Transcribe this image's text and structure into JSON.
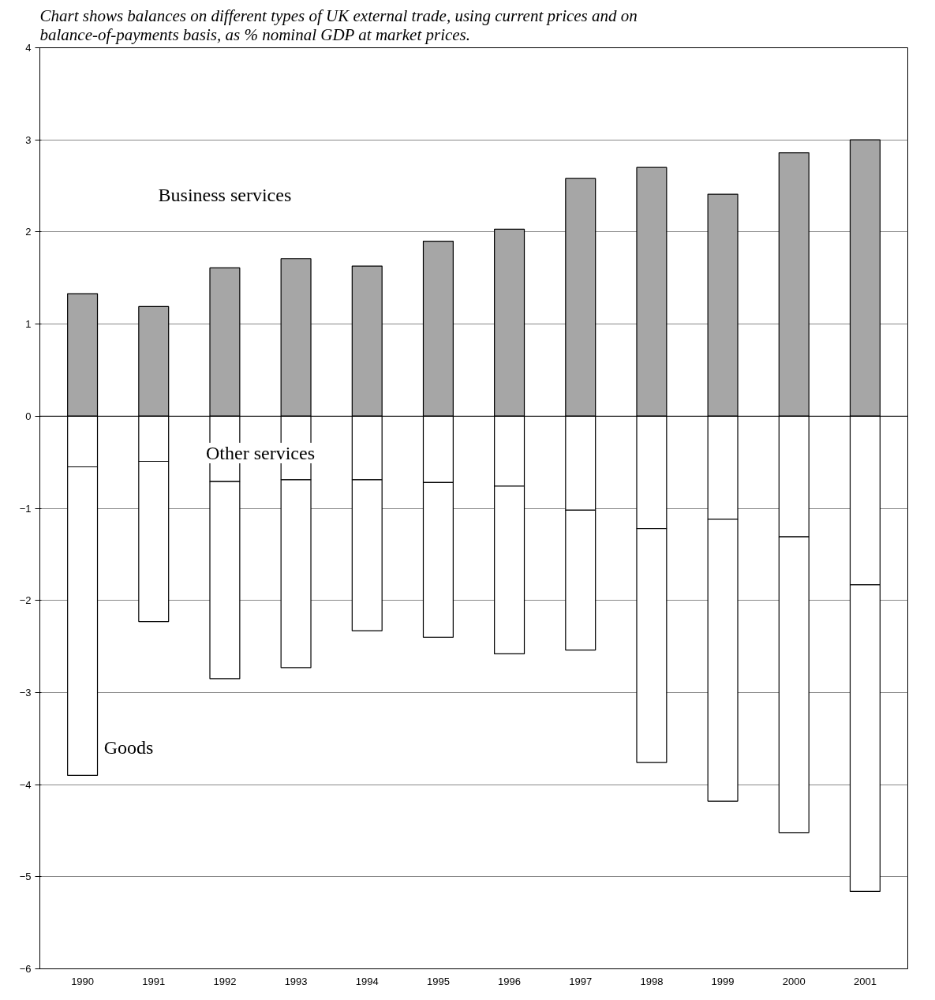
{
  "chart_data": {
    "type": "bar",
    "stacked": true,
    "title": "Chart shows balances on different types of UK external trade, using current prices and on balance-of-payments basis, as % nominal GDP at market prices.",
    "categories": [
      "1990",
      "1991",
      "1992",
      "1993",
      "1994",
      "1995",
      "1996",
      "1997",
      "1998",
      "1999",
      "2000",
      "2001"
    ],
    "series": [
      {
        "name": "Business services",
        "color": "#a6a6a6",
        "values": [
          1.33,
          1.19,
          1.61,
          1.71,
          1.63,
          1.9,
          2.03,
          2.58,
          2.7,
          2.41,
          2.86,
          3.0
        ]
      },
      {
        "name": "Other services",
        "color": "#ffffff",
        "values": [
          -0.55,
          -0.49,
          -0.71,
          -0.69,
          -0.69,
          -0.72,
          -0.76,
          -1.02,
          -1.22,
          -1.12,
          -1.31,
          -1.83
        ]
      },
      {
        "name": "Goods",
        "color": "#ffffff",
        "values": [
          -3.35,
          -1.74,
          -2.14,
          -2.04,
          -1.64,
          -1.68,
          -1.82,
          -1.52,
          -2.54,
          -3.06,
          -3.21,
          -3.33
        ]
      }
    ],
    "ylim": [
      -6,
      4
    ],
    "yticks": [
      -6,
      -5,
      -4,
      -3,
      -2,
      -1,
      0,
      1,
      2,
      3,
      4
    ],
    "grid": "y"
  }
}
